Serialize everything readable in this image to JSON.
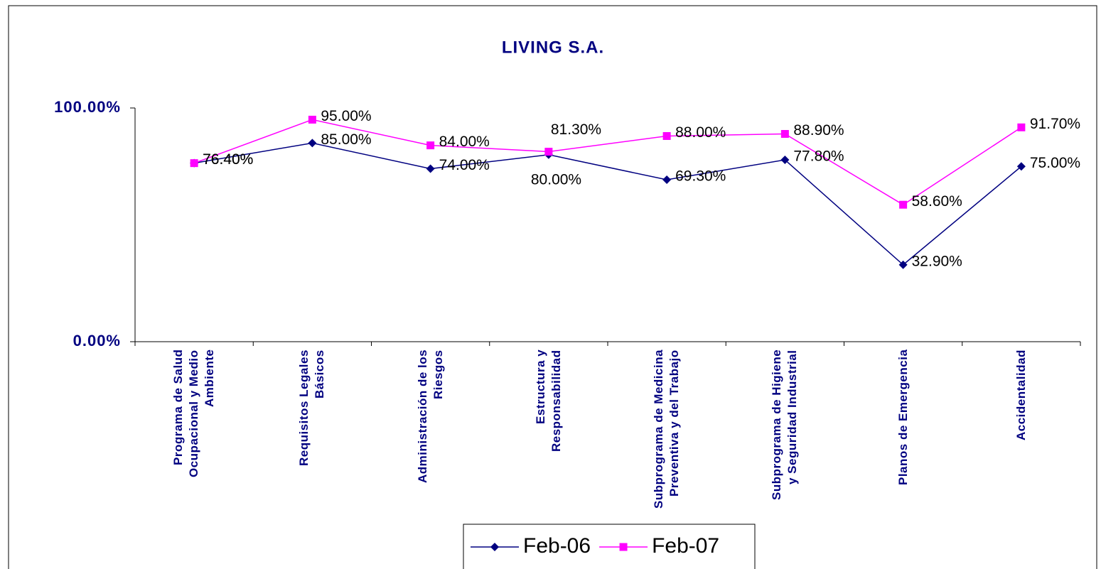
{
  "chart_data": {
    "type": "line",
    "title": "LIVING S.A.",
    "categories": [
      "Programa de Salud Ocupacional y Medio Ambiente",
      "Requisitos Legales Básicos",
      "Administración de los Riesgos",
      "Estructura y Responsabilidad",
      "Subprograma de Medicina Preventiva y del Trabajo",
      "Subprograma de Higiene y Seguridad Industrial",
      "Planos de Emergencia",
      "Accidentalidad"
    ],
    "series": [
      {
        "name": "Feb-06",
        "color": "#000080",
        "marker": "diamond",
        "values": [
          76.4,
          85,
          74,
          80,
          69.3,
          77.8,
          32.9,
          75
        ],
        "value_labels": [
          "76.40%",
          "85.00%",
          "74.00%",
          "80.00%",
          "69.30%",
          "77.80%",
          "32.90%",
          "75.00%"
        ]
      },
      {
        "name": "Feb-07",
        "color": "#FF00FF",
        "marker": "square",
        "values": [
          76.4,
          95,
          84,
          81.3,
          88,
          88.9,
          58.6,
          91.7
        ],
        "value_labels": [
          "76.40%",
          "95.00%",
          "84.00%",
          "81.30%",
          "88.00%",
          "88.90%",
          "58.60%",
          "91.70%"
        ]
      }
    ],
    "ylim": [
      0,
      100
    ],
    "yticks": [
      {
        "value": 0,
        "label": "0.00%"
      },
      {
        "value": 100,
        "label": "100.00%"
      }
    ],
    "legend": "bottom"
  }
}
